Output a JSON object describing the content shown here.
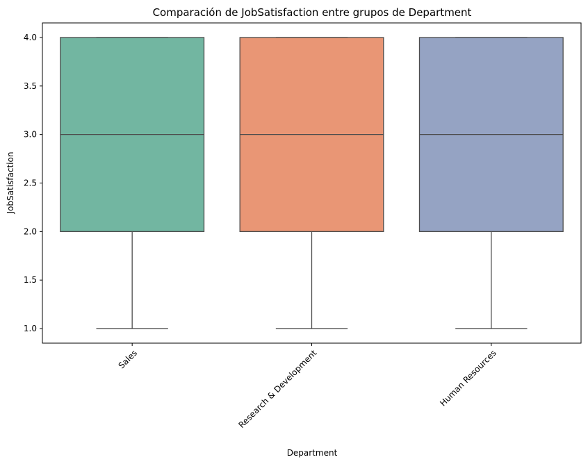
{
  "chart_data": {
    "type": "box",
    "title": "Comparación de JobSatisfaction entre grupos de Department",
    "xlabel": "Department",
    "ylabel": "JobSatisfaction",
    "ylim": [
      0.85,
      4.15
    ],
    "yticks": [
      1.0,
      1.5,
      2.0,
      2.5,
      3.0,
      3.5,
      4.0
    ],
    "ytick_labels": [
      "1.0",
      "1.5",
      "2.0",
      "2.5",
      "3.0",
      "3.5",
      "4.0"
    ],
    "grid": false,
    "categories": [
      "Sales",
      "Research & Development",
      "Human Resources"
    ],
    "boxes": [
      {
        "category": "Sales",
        "min": 1.0,
        "q1": 2.0,
        "median": 3.0,
        "q3": 4.0,
        "max": 4.0,
        "color": "#72b6a1"
      },
      {
        "category": "Research & Development",
        "min": 1.0,
        "q1": 2.0,
        "median": 3.0,
        "q3": 4.0,
        "max": 4.0,
        "color": "#e99675"
      },
      {
        "category": "Human Resources",
        "min": 1.0,
        "q1": 2.0,
        "median": 3.0,
        "q3": 4.0,
        "max": 4.0,
        "color": "#95a3c3"
      }
    ],
    "line_color": "#4d4d4d"
  }
}
